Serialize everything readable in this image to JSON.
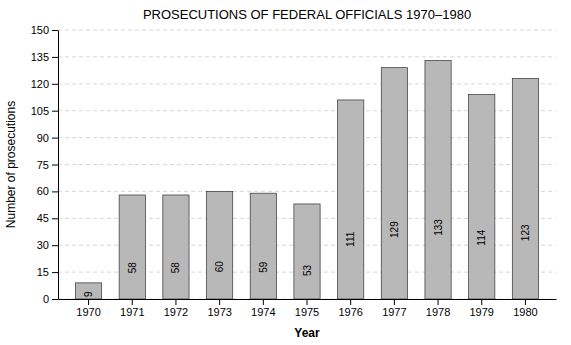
{
  "chart_data": {
    "type": "bar",
    "title": "PROSECUTIONS OF FEDERAL OFFICIALS 1970–1980",
    "xlabel": "Year",
    "ylabel": "Number of prosecutions",
    "categories": [
      "1970",
      "1971",
      "1972",
      "1973",
      "1974",
      "1975",
      "1976",
      "1977",
      "1978",
      "1979",
      "1980"
    ],
    "values": [
      9,
      58,
      58,
      60,
      59,
      53,
      111,
      129,
      133,
      114,
      123
    ],
    "color": "#b8b8b8",
    "ylim": [
      0,
      150
    ],
    "yticks": [
      0,
      15,
      30,
      45,
      60,
      75,
      90,
      105,
      120,
      135,
      150
    ],
    "grid": true,
    "data_labels": true
  }
}
